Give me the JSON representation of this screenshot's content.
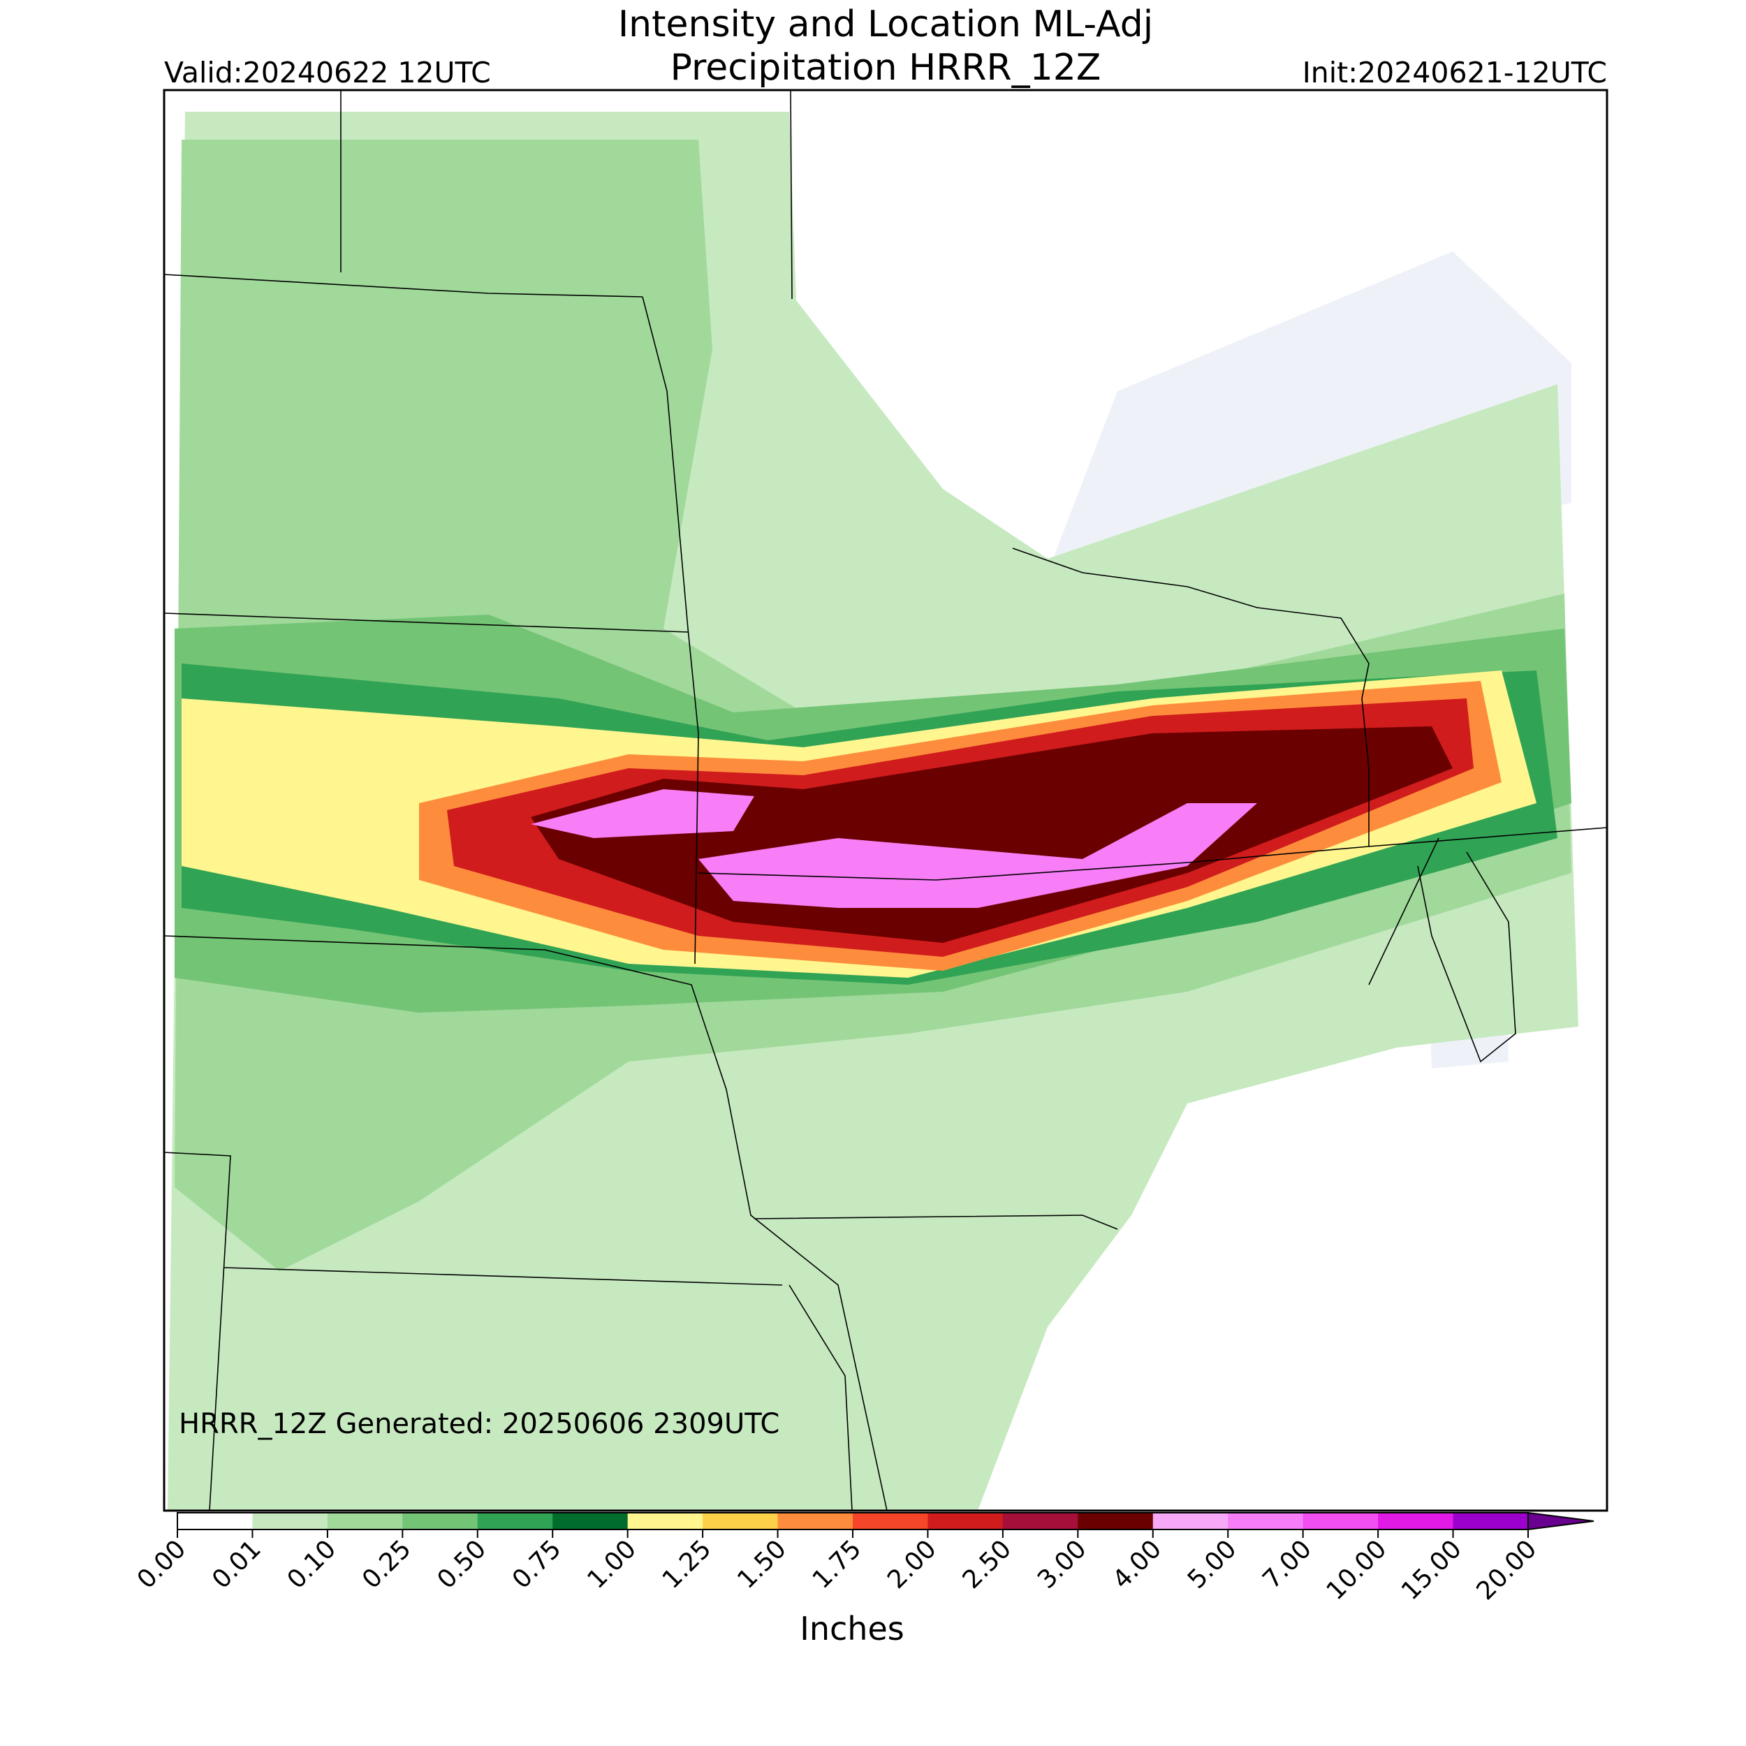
{
  "header": {
    "title_line1": "Intensity and Location ML-Adj",
    "title_line2": "Precipitation HRRR_12Z",
    "valid": "Valid:20240622 12UTC",
    "init": "Init:20240621-12UTC"
  },
  "map": {
    "footnote": "HRRR_12Z Generated: 20250606 2309UTC"
  },
  "colorbar": {
    "label": "Inches",
    "ticks": [
      {
        "value": 0,
        "label": "0.00"
      },
      {
        "value": 0.01,
        "label": "0.01"
      },
      {
        "value": 0.1,
        "label": "0.10"
      },
      {
        "value": 0.25,
        "label": "0.25"
      },
      {
        "value": 0.5,
        "label": "0.50"
      },
      {
        "value": 0.75,
        "label": "0.75"
      },
      {
        "value": 1,
        "label": "1.00"
      },
      {
        "value": 1.25,
        "label": "1.25"
      },
      {
        "value": 1.5,
        "label": "1.50"
      },
      {
        "value": 1.75,
        "label": "1.75"
      },
      {
        "value": 2,
        "label": "2.00"
      },
      {
        "value": 2.5,
        "label": "2.50"
      },
      {
        "value": 3,
        "label": "3.00"
      },
      {
        "value": 4,
        "label": "4.00"
      },
      {
        "value": 5,
        "label": "5.00"
      },
      {
        "value": 7,
        "label": "7.00"
      },
      {
        "value": 10,
        "label": "10.00"
      },
      {
        "value": 15,
        "label": "15.00"
      },
      {
        "value": 20,
        "label": "20.00"
      }
    ],
    "colors": [
      "#ffffff",
      "#c7e9c0",
      "#a1d99b",
      "#74c476",
      "#31a354",
      "#006d2c",
      "#fff68f",
      "#fdd049",
      "#fd8d3c",
      "#f5462a",
      "#d01c1c",
      "#a50f3a",
      "#6b0000",
      "#f7a8f7",
      "#f77ef7",
      "#f24ff2",
      "#e11ae6",
      "#9b00cc"
    ],
    "extend_color": "#6a0090"
  }
}
